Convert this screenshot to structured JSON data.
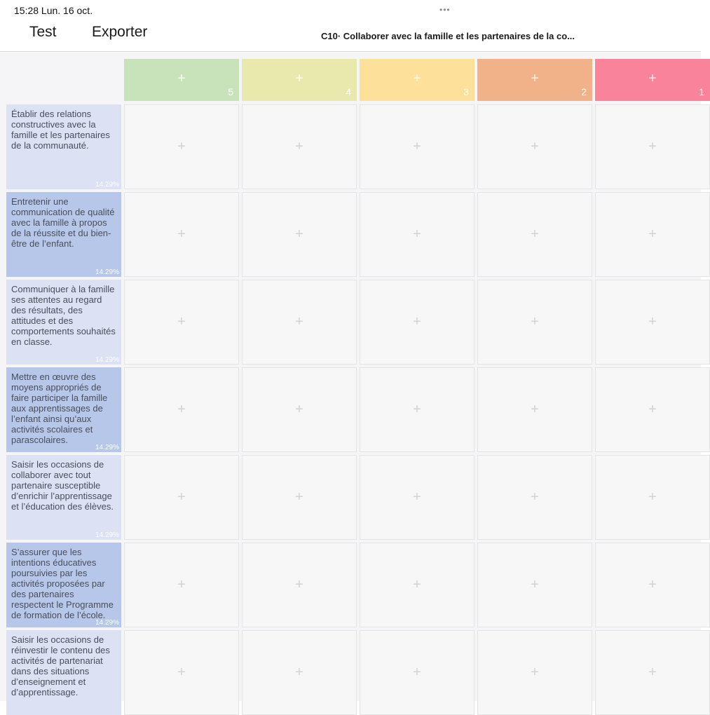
{
  "status": {
    "time_date": "15:28  Lun. 16 oct.",
    "dots": "•••"
  },
  "toolbar": {
    "test_label": "Test",
    "export_label": "Exporter",
    "title": "C10· Collaborer avec la famille et les partenaires de la co..."
  },
  "colors": {
    "level_5": "#c8e2b9",
    "level_4": "#e9e8ad",
    "level_3": "#fde09a",
    "level_2": "#f1b28a",
    "level_1": "#f9839a",
    "criterion_light": "#dce1f4",
    "criterion_dark": "#b6c7e9"
  },
  "add_icon": "+",
  "levels": [
    {
      "num": "5",
      "color": "#c8e2b9"
    },
    {
      "num": "4",
      "color": "#e9e8ad"
    },
    {
      "num": "3",
      "color": "#fde09a"
    },
    {
      "num": "2",
      "color": "#f1b28a"
    },
    {
      "num": "1",
      "color": "#f9839a"
    }
  ],
  "criteria": [
    {
      "text": "Établir des relations constructives avec la famille et les partenaires de la communauté.",
      "pct": "14.29%",
      "shade": "light"
    },
    {
      "text": "Entretenir une communication de qualité avec la famille à propos de la réussite et du bien-être de l’enfant.",
      "pct": "14.29%",
      "shade": "dark"
    },
    {
      "text": "Communiquer à la famille ses attentes au regard des résultats, des attitudes et des comportements souhaités en classe.",
      "pct": "14.29%",
      "shade": "light"
    },
    {
      "text": "Mettre en œuvre des moyens appropriés de faire participer la famille aux apprentissages de l’enfant ainsi qu’aux activités scolaires et parascolaires.",
      "pct": "14.29%",
      "shade": "dark"
    },
    {
      "text": "Saisir les occasions de collaborer avec tout partenaire susceptible d’enrichir l’apprentissage et l’éducation des élèves.",
      "pct": "14.29%",
      "shade": "light"
    },
    {
      "text": "S’assurer que les intentions éducatives poursuivies par les activités proposées par des partenaires respectent le Programme de formation de l’école.",
      "pct": "14.29%",
      "shade": "dark"
    },
    {
      "text": "Saisir les occasions de réinvestir le contenu des activités de partenariat dans des situations d’enseignement et d’apprentissage.",
      "pct": "",
      "shade": "light"
    }
  ]
}
